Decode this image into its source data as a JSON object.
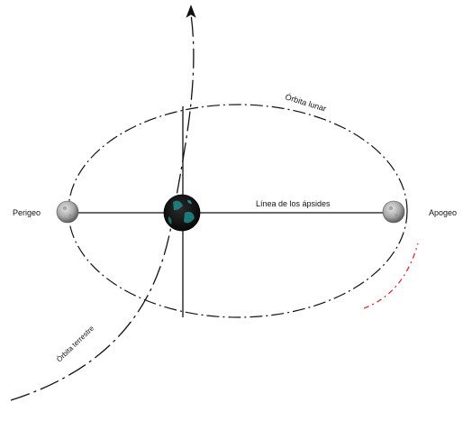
{
  "labels": {
    "perigeo": "Perigeo",
    "apogeo": "Apogeo",
    "orbita_lunar": "Órbita lunar",
    "linea_apsides": "Línea de los ápsides",
    "orbita_terrestre": "Órbita terrestre"
  },
  "colors": {
    "ink": "#111111",
    "accent": "#d62020",
    "earth": "#1a1a1a",
    "earth_land": "#1f8a8a",
    "moon_light": "#d8d8d8",
    "moon_dark": "#6f6f6f"
  },
  "icons": {
    "earth": "earth-globe-icon",
    "moon": "moon-icon"
  }
}
